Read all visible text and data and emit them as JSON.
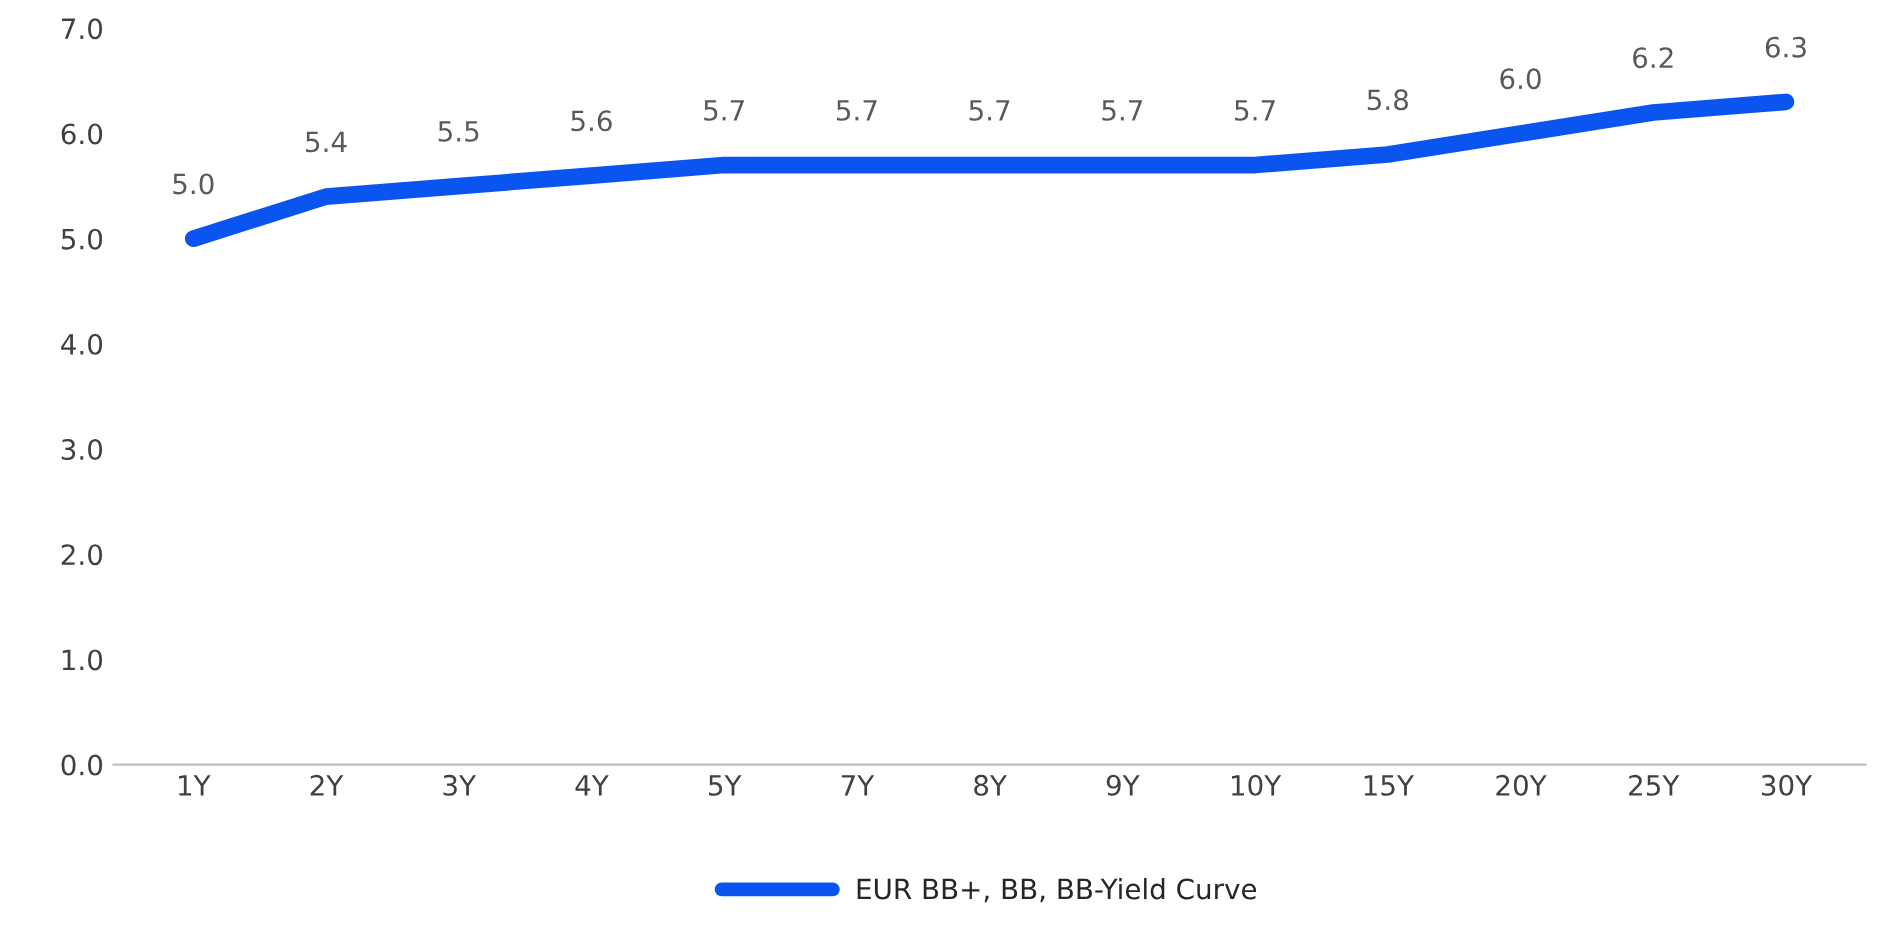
{
  "chart_data": {
    "type": "line",
    "categories": [
      "1Y",
      "2Y",
      "3Y",
      "4Y",
      "5Y",
      "7Y",
      "8Y",
      "9Y",
      "10Y",
      "15Y",
      "20Y",
      "25Y",
      "30Y"
    ],
    "series": [
      {
        "name": "EUR BB+, BB, BB-Yield Curve",
        "color": "#0a55f0",
        "values": [
          5.0,
          5.4,
          5.5,
          5.6,
          5.7,
          5.7,
          5.7,
          5.7,
          5.7,
          5.8,
          6.0,
          6.2,
          6.3
        ],
        "value_labels": [
          "5.0",
          "5.4",
          "5.5",
          "5.6",
          "5.7",
          "5.7",
          "5.7",
          "5.7",
          "5.7",
          "5.8",
          "6.0",
          "6.2",
          "6.3"
        ]
      }
    ],
    "ylim": [
      0,
      7
    ],
    "yticks": [
      {
        "value": 0,
        "label": "0.0"
      },
      {
        "value": 1,
        "label": "1.0"
      },
      {
        "value": 2,
        "label": "2.0"
      },
      {
        "value": 3,
        "label": "3.0"
      },
      {
        "value": 4,
        "label": "4.0"
      },
      {
        "value": 5,
        "label": "5.0"
      },
      {
        "value": 6,
        "label": "6.0"
      },
      {
        "value": 7,
        "label": "7.0"
      }
    ],
    "legend": "bottom",
    "grid": false,
    "marker": "none",
    "line_style": "solid"
  }
}
